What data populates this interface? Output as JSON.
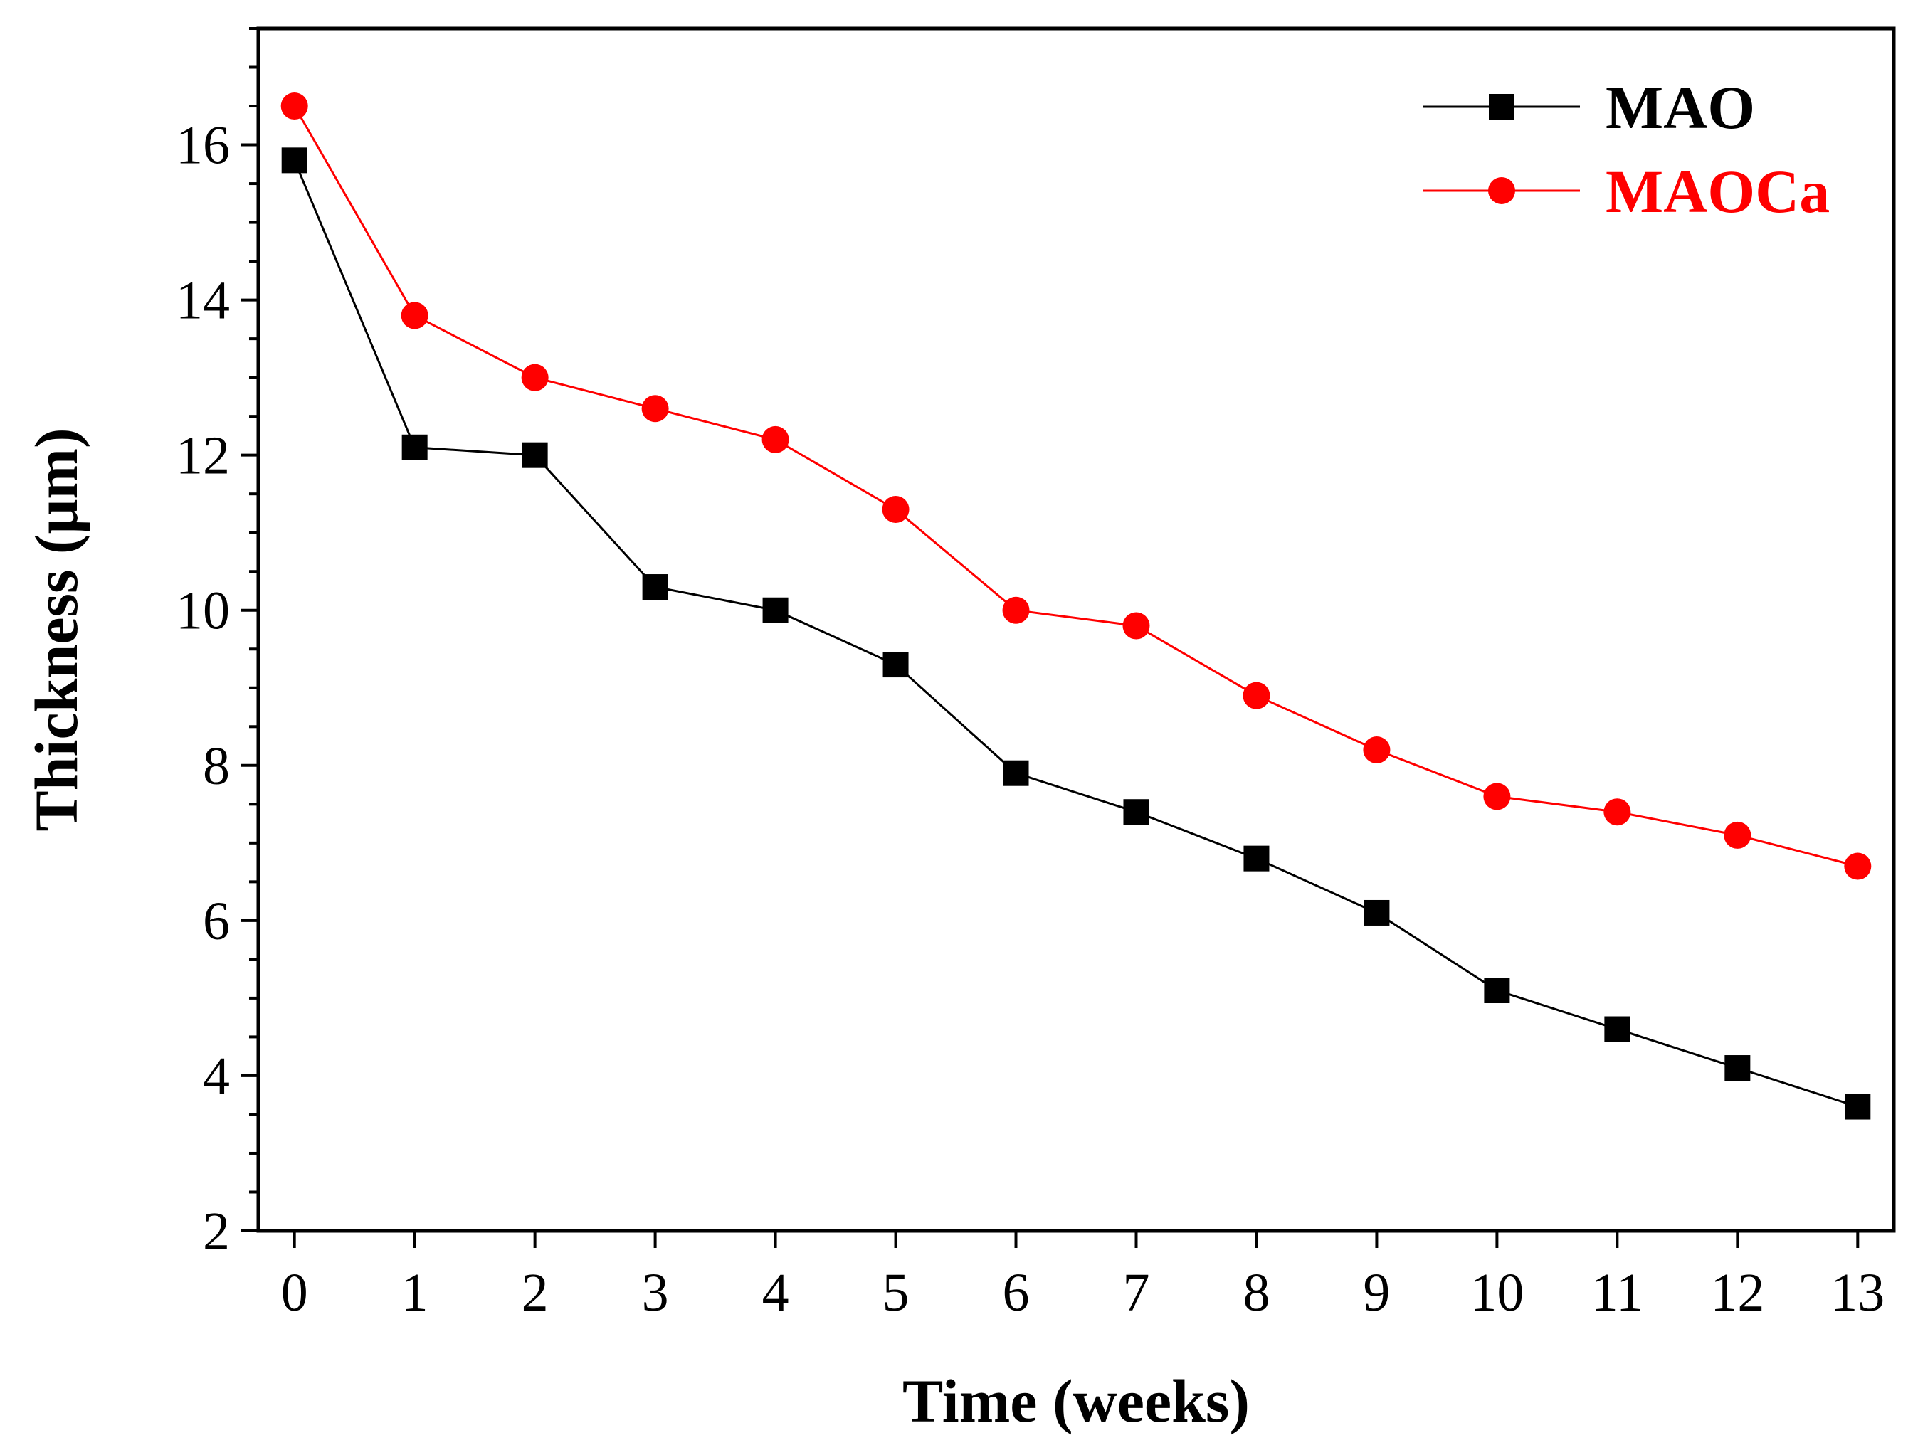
{
  "chart_data": {
    "type": "line",
    "title": "",
    "xlabel": "Time (weeks)",
    "ylabel": "Thickness (μm)",
    "xlim": [
      -0.3,
      13.3
    ],
    "ylim": [
      2,
      17.5
    ],
    "xticks": [
      0,
      1,
      2,
      3,
      4,
      5,
      6,
      7,
      8,
      9,
      10,
      11,
      12,
      13
    ],
    "yticks": [
      2,
      4,
      6,
      8,
      10,
      12,
      14,
      16
    ],
    "y_minor_step": 0.5,
    "grid": false,
    "legend_position": "top-right",
    "x": [
      0,
      1,
      2,
      3,
      4,
      5,
      6,
      7,
      8,
      9,
      10,
      11,
      12,
      13
    ],
    "series": [
      {
        "name": "MAO",
        "color": "#000000",
        "marker": "square",
        "values": [
          15.8,
          12.1,
          12.0,
          10.3,
          10.0,
          9.3,
          7.9,
          7.4,
          6.8,
          6.1,
          5.1,
          4.6,
          4.1,
          3.6
        ]
      },
      {
        "name": "MAOCa",
        "color": "#ff0000",
        "marker": "circle",
        "values": [
          16.5,
          13.8,
          13.0,
          12.6,
          12.2,
          11.3,
          10.0,
          9.8,
          8.9,
          8.2,
          7.6,
          7.4,
          7.1,
          6.7
        ]
      }
    ]
  }
}
